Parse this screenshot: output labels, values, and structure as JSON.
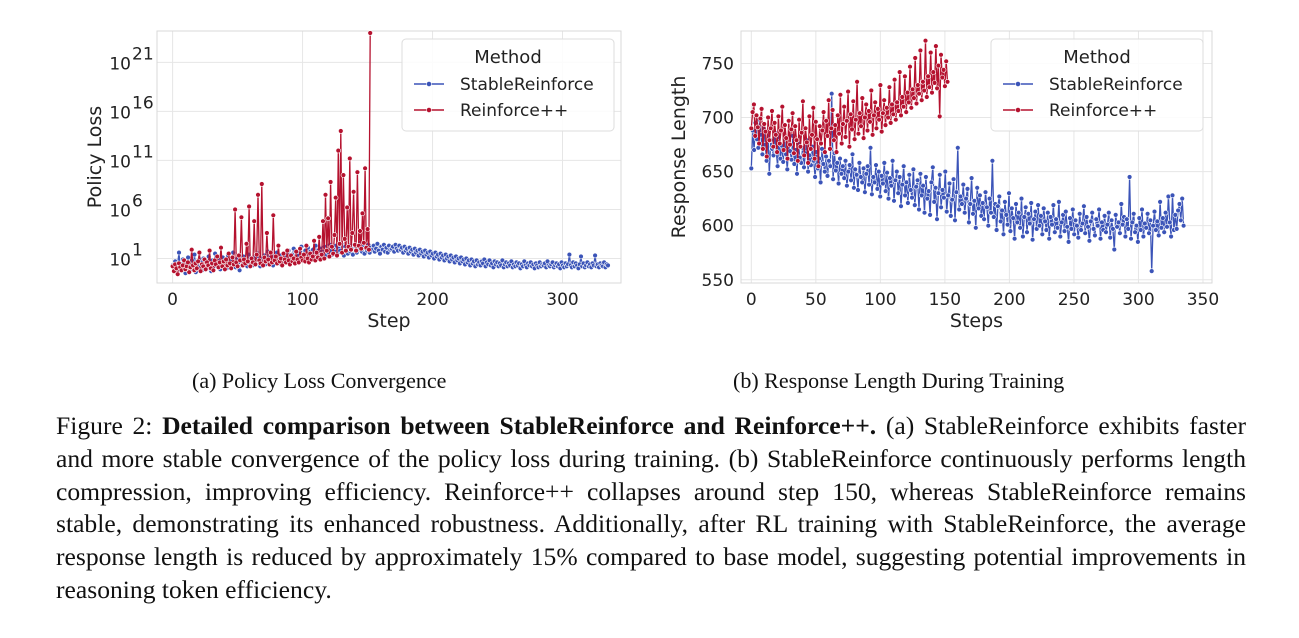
{
  "figure": {
    "subcaption_a": "(a)  Policy Loss Convergence",
    "subcaption_b": "(b)  Response Length During Training",
    "label": "Figure 2:",
    "bold": "Detailed comparison between StableReinforce and Reinforce++.",
    "text": " (a) StableReinforce exhibits faster and more stable convergence of the policy loss during training. (b) StableReinforce continuously performs length compression, improving efficiency. Reinforce++ collapses around step 150, whereas StableReinforce remains stable, demonstrating its enhanced robustness. Additionally, after RL training with StableReinforce, the average response length is reduced by approximately 15% compared to base model, suggesting potential improvements in reasoning token efficiency."
  },
  "colors": {
    "stable": "#3b54b8",
    "reinforce": "#b5122f",
    "grid": "#e6e6e6"
  },
  "chart_data": [
    {
      "type": "line",
      "xlabel": "Step",
      "ylabel": "Policy Loss",
      "yscale": "log",
      "xlim": [
        -12,
        345
      ],
      "ylim_log10": [
        -1.5,
        24.2
      ],
      "xticks": [
        "0",
        "100",
        "200",
        "300"
      ],
      "yticks": [
        {
          "base": "10",
          "exp": "1",
          "log": 1
        },
        {
          "base": "10",
          "exp": "6",
          "log": 6
        },
        {
          "base": "10",
          "exp": "11",
          "log": 11
        },
        {
          "base": "10",
          "exp": "16",
          "log": 16
        },
        {
          "base": "10",
          "exp": "21",
          "log": 21
        }
      ],
      "legend": {
        "title": "Method",
        "position": "top-right"
      },
      "grid": true,
      "series": [
        {
          "name": "StableReinforce",
          "x_start": 0,
          "x_end": 335,
          "log_values": [
            0.3,
            0.1,
            0.7,
            -0.3,
            0.5,
            1.6,
            -0.2,
            0.4,
            0.9,
            0.0,
            -0.5,
            0.6,
            1.1,
            0.2,
            -0.1,
            0.8,
            0.3,
            1.4,
            -0.4,
            0.5,
            0.1,
            0.9,
            0.6,
            -0.2,
            1.0,
            0.3,
            0.7,
            0.0,
            1.2,
            0.4,
            -0.3,
            0.8,
            0.2,
            1.5,
            0.5,
            0.1,
            0.9,
            -0.1,
            0.6,
            1.1,
            0.3,
            0.7,
            0.0,
            1.3,
            0.5,
            0.2,
            0.8,
            1.6,
            0.4,
            0.1,
            1.0,
            0.6,
            -0.2,
            0.9,
            0.3,
            1.2,
            0.5,
            0.8,
            0.2,
            1.4,
            0.6,
            0.9,
            0.3,
            1.1,
            0.7,
            0.4,
            1.5,
            0.8,
            0.2,
            1.0,
            0.6,
            1.3,
            0.4,
            0.9,
            1.7,
            0.5,
            1.1,
            0.8,
            0.3,
            1.2,
            0.7,
            1.6,
            0.9,
            0.5,
            1.3,
            1.0,
            0.6,
            1.5,
            1.1,
            0.8,
            1.8,
            1.2,
            0.9,
            1.4,
            2.0,
            1.1,
            1.6,
            1.3,
            0.9,
            1.7,
            2.2,
            1.4,
            1.1,
            1.8,
            1.5,
            2.1,
            1.3,
            1.7,
            1.0,
            1.9,
            1.6,
            2.3,
            1.4,
            1.8,
            1.2,
            2.0,
            1.7,
            1.5,
            2.2,
            1.3,
            1.9,
            1.6,
            2.4,
            1.8,
            1.4,
            2.1,
            1.7,
            2.3,
            1.5,
            2.0,
            1.8,
            2.5,
            1.6,
            1.3,
            2.2,
            1.9,
            1.5,
            2.3,
            1.7,
            2.0,
            1.4,
            2.4,
            1.8,
            1.6,
            2.1,
            1.9,
            2.6,
            1.7,
            2.2,
            1.5,
            2.0,
            1.8,
            2.4,
            1.6,
            2.1,
            1.9,
            2.3,
            1.7,
            2.0,
            2.5,
            1.8,
            1.5,
            2.2,
            1.9,
            2.4,
            1.7,
            2.1,
            1.6,
            2.3,
            1.9,
            2.0,
            2.2,
            1.7,
            2.4,
            2.0,
            1.8,
            2.3,
            1.9,
            2.1,
            1.6,
            2.2,
            1.8,
            2.0,
            1.5,
            2.1,
            1.7,
            1.9,
            1.4,
            2.0,
            1.6,
            1.8,
            1.3,
            1.9,
            1.5,
            1.7,
            1.2,
            1.8,
            1.4,
            1.6,
            1.1,
            1.7,
            1.3,
            1.5,
            1.0,
            1.6,
            1.2,
            1.4,
            0.9,
            1.5,
            1.1,
            1.3,
            0.8,
            1.4,
            1.0,
            1.2,
            0.7,
            1.3,
            0.9,
            1.1,
            0.6,
            1.2,
            0.8,
            1.0,
            0.5,
            1.1,
            0.7,
            0.9,
            0.4,
            1.0,
            0.6,
            0.8,
            0.3,
            0.9,
            0.5,
            0.7,
            0.2,
            0.8,
            0.4,
            0.6,
            0.3,
            0.7,
            0.5,
            0.9,
            0.2,
            0.6,
            0.4,
            0.8,
            0.3,
            0.5,
            0.1,
            0.7,
            0.4,
            0.6,
            0.2,
            0.5,
            0.3,
            0.8,
            0.1,
            0.4,
            0.6,
            0.2,
            0.5,
            0.3,
            0.7,
            0.1,
            0.4,
            0.2,
            0.6,
            0.3,
            0.5,
            0.0,
            0.4,
            0.2,
            0.7,
            0.3,
            0.1,
            0.5,
            0.3,
            0.6,
            0.2,
            0.4,
            0.0,
            0.5,
            0.3,
            0.1,
            0.6,
            0.2,
            0.4,
            0.3,
            0.5,
            0.1,
            0.7,
            0.3,
            0.2,
            0.4,
            0.6,
            0.1,
            0.3,
            0.5,
            0.2,
            0.4,
            0.0,
            0.6,
            0.3,
            0.1,
            0.5,
            0.2,
            0.4,
            1.4,
            0.3,
            0.1,
            0.6,
            0.2,
            0.5,
            0.3,
            0.0,
            0.4,
            1.2,
            0.2,
            0.5,
            0.1,
            0.3,
            0.6,
            0.2,
            0.4,
            0.1,
            0.5,
            0.3,
            1.3,
            0.2,
            0.4,
            0.1,
            0.5,
            0.3,
            0.2,
            0.6,
            0.1,
            0.4,
            0.3
          ]
        },
        {
          "name": "Reinforce++",
          "x_start": 0,
          "x_end": 152,
          "log_values": [
            0.2,
            -0.3,
            0.4,
            0.0,
            -0.6,
            0.5,
            0.1,
            -0.2,
            0.3,
            0.8,
            -0.1,
            0.2,
            0.6,
            -0.4,
            0.1,
            1.9,
            0.3,
            -0.2,
            0.5,
            0.0,
            0.7,
            1.6,
            -0.3,
            0.4,
            0.2,
            0.9,
            -0.1,
            0.6,
            0.3,
            1.8,
            0.0,
            0.5,
            -0.2,
            0.8,
            0.4,
            1.2,
            0.1,
            0.6,
            2.1,
            0.2,
            0.7,
            -0.1,
            0.9,
            0.3,
            1.5,
            0.5,
            0.0,
            1.1,
            0.4,
            6.0,
            0.6,
            0.2,
            1.3,
            0.8,
            5.2,
            0.3,
            0.9,
            0.5,
            2.5,
            0.7,
            6.3,
            0.2,
            1.0,
            0.6,
            4.8,
            0.4,
            1.4,
            7.5,
            0.8,
            0.5,
            8.6,
            0.3,
            1.1,
            0.7,
            3.6,
            0.9,
            0.4,
            1.6,
            0.6,
            5.4,
            0.8,
            1.2,
            0.5,
            2.3,
            0.7,
            1.0,
            0.3,
            1.5,
            0.9,
            0.6,
            1.8,
            0.8,
            0.4,
            1.3,
            0.7,
            1.0,
            0.5,
            1.7,
            0.9,
            0.6,
            2.0,
            1.1,
            0.8,
            1.4,
            0.7,
            2.3,
            1.0,
            0.6,
            1.5,
            0.9,
            1.2,
            2.8,
            0.8,
            1.6,
            1.1,
            3.2,
            0.9,
            1.4,
            4.8,
            1.0,
            7.5,
            1.8,
            5.1,
            1.2,
            8.8,
            2.2,
            1.5,
            3.4,
            7.2,
            1.3,
            12.0,
            2.5,
            14.0,
            1.6,
            9.5,
            3.0,
            1.8,
            6.2,
            2.2,
            11.2,
            1.9,
            3.6,
            7.8,
            2.4,
            1.8,
            9.8,
            2.3,
            3.8,
            2.0,
            5.6,
            2.6,
            10.2,
            2.1,
            4.0,
            1.9,
            24.0
          ]
        }
      ]
    },
    {
      "type": "line",
      "xlabel": "Steps",
      "ylabel": "Response Length",
      "xlim": [
        -8,
        357
      ],
      "ylim": [
        547,
        780
      ],
      "xticks": [
        0,
        50,
        100,
        150,
        200,
        250,
        300,
        350
      ],
      "yticks": [
        550,
        600,
        650,
        700,
        750
      ],
      "legend": {
        "title": "Method",
        "position": "top-right"
      },
      "grid": true,
      "series": [
        {
          "name": "StableReinforce",
          "x_start": 0,
          "x_end": 335,
          "values": [
            653,
            688,
            670,
            695,
            680,
            672,
            698,
            684,
            666,
            690,
            675,
            660,
            687,
            648,
            679,
            671,
            665,
            686,
            668,
            655,
            682,
            662,
            674,
            659,
            680,
            666,
            652,
            675,
            669,
            661,
            683,
            657,
            670,
            648,
            676,
            663,
            658,
            672,
            654,
            667,
            679,
            650,
            665,
            656,
            673,
            660,
            645,
            668,
            653,
            662,
            640,
            671,
            657,
            650,
            664,
            646,
            660,
            655,
            722,
            643,
            667,
            651,
            658,
            639,
            662,
            648,
            655,
            644,
            660,
            637,
            650,
            656,
            642,
            666,
            635,
            652,
            647,
            633,
            658,
            645,
            640,
            653,
            631,
            648,
            655,
            638,
            672,
            629,
            645,
            640,
            656,
            634,
            650,
            627,
            646,
            639,
            658,
            632,
            649,
            625,
            644,
            637,
            660,
            623,
            642,
            650,
            630,
            645,
            618,
            638,
            655,
            628,
            640,
            621,
            647,
            633,
            626,
            652,
            619,
            636,
            642,
            615,
            648,
            628,
            637,
            612,
            645,
            625,
            632,
            610,
            640,
            654,
            622,
            635,
            606,
            630,
            647,
            617,
            633,
            626,
            650,
            613,
            628,
            639,
            609,
            624,
            643,
            605,
            631,
            672,
            615,
            627,
            620,
            638,
            612,
            625,
            634,
            603,
            620,
            644,
            611,
            623,
            598,
            635,
            616,
            628,
            609,
            621,
            606,
            631,
            617,
            600,
            625,
            612,
            660,
            608,
            620,
            596,
            618,
            627,
            604,
            614,
            592,
            622,
            610,
            601,
            630,
            595,
            616,
            607,
            588,
            620,
            603,
            612,
            598,
            625,
            590,
            608,
            617,
            594,
            611,
            602,
            621,
            587,
            606,
            613,
            597,
            619,
            600,
            609,
            592,
            616,
            604,
            596,
            612,
            588,
            608,
            601,
            619,
            594,
            606,
            598,
            622,
            590,
            603,
            610,
            595,
            613,
            599,
            585,
            607,
            597,
            615,
            592,
            605,
            600,
            589,
            611,
            596,
            602,
            618,
            593,
            608,
            599,
            586,
            604,
            612,
            597,
            591,
            606,
            600,
            615,
            588,
            603,
            596,
            609,
            594,
            601,
            612,
            589,
            605,
            597,
            578,
            610,
            599,
            603,
            593,
            620,
            601,
            608,
            590,
            606,
            597,
            645,
            588,
            603,
            611,
            594,
            600,
            585,
            607,
            596,
            615,
            590,
            602,
            598,
            611,
            593,
            605,
            558,
            600,
            613,
            596,
            604,
            591,
            622,
            598,
            607,
            594,
            612,
            599,
            627,
            603,
            590,
            628,
            596,
            610,
            597,
            614,
            620,
            605,
            625,
            600
          ]
        },
        {
          "name": "Reinforce++",
          "x_start": 0,
          "x_end": 152,
          "values": [
            690,
            705,
            712,
            683,
            702,
            691,
            676,
            699,
            708,
            671,
            694,
            687,
            664,
            700,
            679,
            690,
            706,
            673,
            695,
            684,
            668,
            701,
            676,
            688,
            710,
            670,
            693,
            681,
            662,
            697,
            675,
            689,
            704,
            667,
            692,
            679,
            660,
            698,
            673,
            686,
            715,
            665,
            690,
            677,
            658,
            701,
            671,
            684,
            709,
            662,
            696,
            680,
            655,
            692,
            676,
            688,
            705,
            668,
            697,
            683,
            716,
            671,
            690,
            707,
            679,
            693,
            668,
            702,
            685,
            721,
            676,
            694,
            710,
            682,
            697,
            724,
            673,
            703,
            689,
            715,
            680,
            698,
            733,
            685,
            704,
            692,
            718,
            681,
            700,
            712,
            688,
            706,
            696,
            725,
            684,
            702,
            714,
            690,
            708,
            698,
            730,
            687,
            704,
            716,
            693,
            709,
            700,
            728,
            695,
            712,
            703,
            735,
            698,
            714,
            706,
            742,
            702,
            719,
            710,
            738,
            705,
            723,
            714,
            747,
            709,
            726,
            718,
            755,
            713,
            730,
            722,
            762,
            716,
            733,
            725,
            771,
            719,
            738,
            728,
            760,
            723,
            742,
            732,
            766,
            727,
            748,
            701,
            758,
            737,
            744,
            729,
            752,
            733
          ]
        }
      ]
    }
  ]
}
